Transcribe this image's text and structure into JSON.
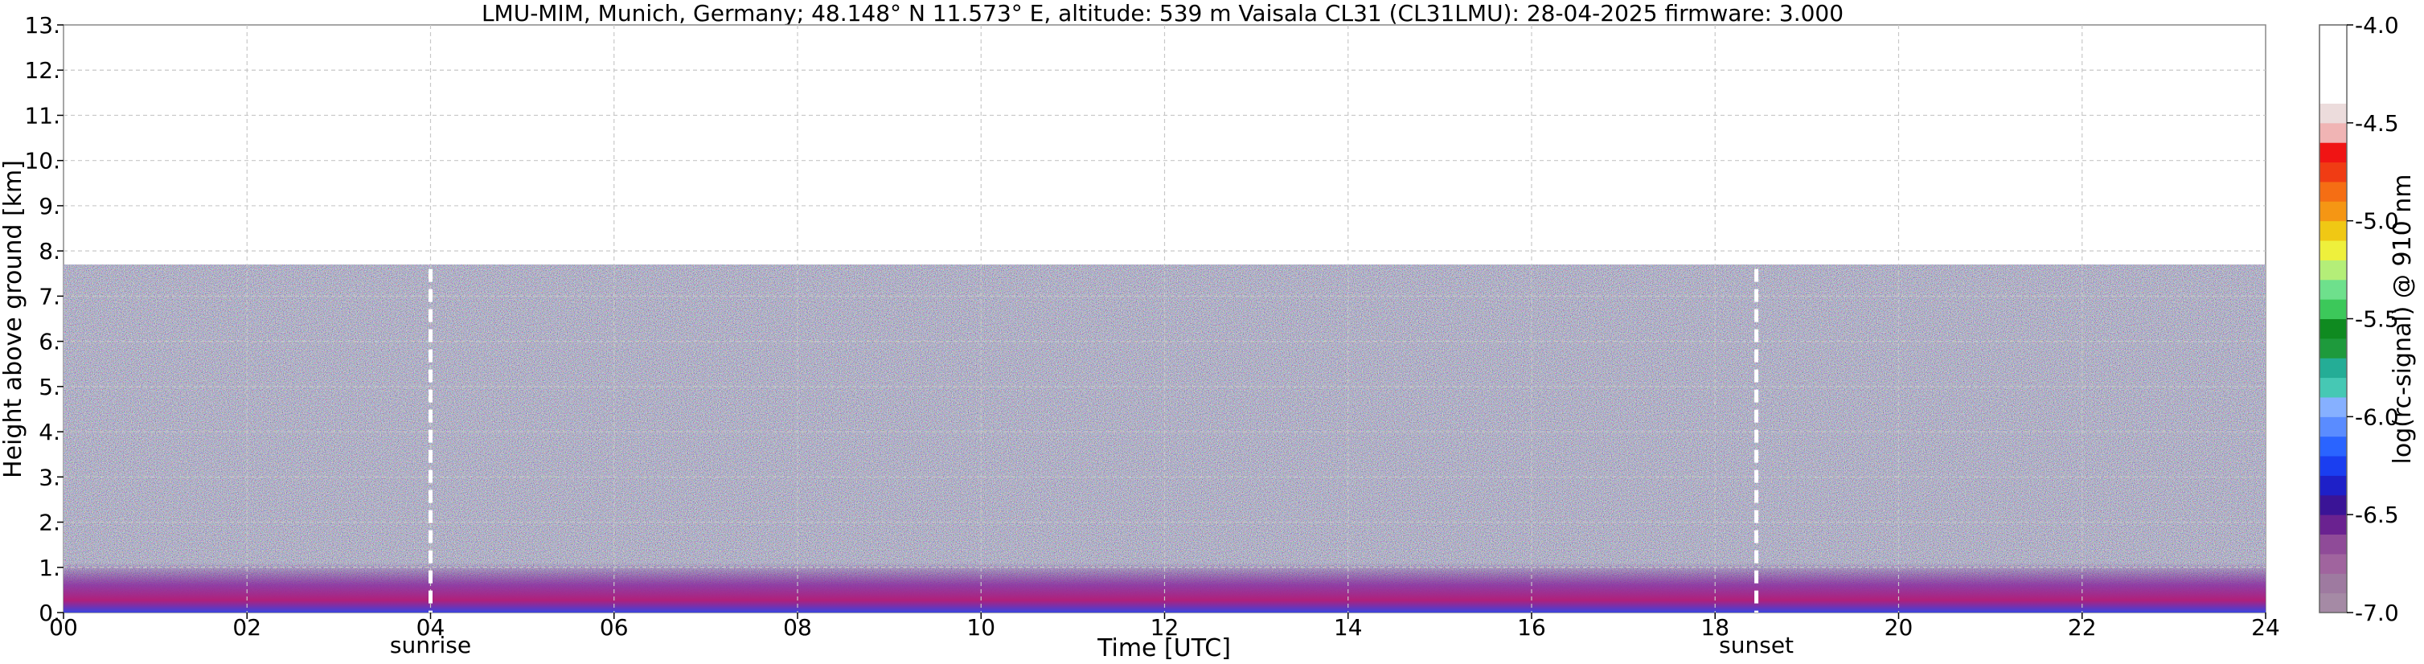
{
  "chart_data": {
    "type": "heatmap",
    "title": "LMU-MIM, Munich, Germany; 48.148° N 11.573° E, altitude: 539 m    Vaisala CL31 (CL31LMU): 28-04-2025    firmware: 3.000",
    "xlabel": "Time [UTC]",
    "ylabel": "Height above ground [km]",
    "xlim": [
      0,
      24
    ],
    "ylim": [
      0,
      13
    ],
    "x_ticks": [
      0,
      2,
      4,
      6,
      8,
      10,
      12,
      14,
      16,
      18,
      20,
      22,
      24
    ],
    "x_tick_labels": [
      "00",
      "02",
      "04",
      "06",
      "08",
      "10",
      "12",
      "14",
      "16",
      "18",
      "20",
      "22",
      "24"
    ],
    "y_ticks": [
      0,
      1,
      2,
      3,
      4,
      5,
      6,
      7,
      8,
      9,
      10,
      11,
      12,
      13
    ],
    "y_tick_labels": [
      "0.",
      "1.",
      "2.",
      "3.",
      "4.",
      "5.",
      "6.",
      "7.",
      "8.",
      "9.",
      "10.",
      "11.",
      "12.",
      "13."
    ],
    "grid": true,
    "max_signal_height_km": 7.7,
    "events": [
      {
        "label": "sunrise",
        "time": 4.0
      },
      {
        "label": "sunset",
        "time": 18.45
      }
    ],
    "colorbar": {
      "label": "log(rc-signal) @ 910 nm",
      "range": [
        -7.0,
        -4.0
      ],
      "ticks": [
        -7.0,
        -6.5,
        -6.0,
        -5.5,
        -5.0,
        -4.5,
        -4.0
      ],
      "tick_labels": [
        "-7.0",
        "-6.5",
        "-6.0",
        "-5.5",
        "-5.0",
        "-4.5",
        "-4.0"
      ],
      "colors": [
        "#a58aa5",
        "#9e7aa0",
        "#a0649e",
        "#8f4b98",
        "#6a2290",
        "#3a1496",
        "#1e20c8",
        "#1a3ef0",
        "#2a64ff",
        "#5a8cff",
        "#86b0ff",
        "#46c8b4",
        "#24ad96",
        "#1e9a3c",
        "#0f8a20",
        "#3cc85a",
        "#6ee08c",
        "#b4ee78",
        "#eef03c",
        "#f0c814",
        "#f59614",
        "#f56e14",
        "#f03c14",
        "#f01414",
        "#f0b4b4",
        "#ecdcdc",
        "#ffffff",
        "#ffffff",
        "#ffffff",
        "#ffffff"
      ]
    }
  }
}
